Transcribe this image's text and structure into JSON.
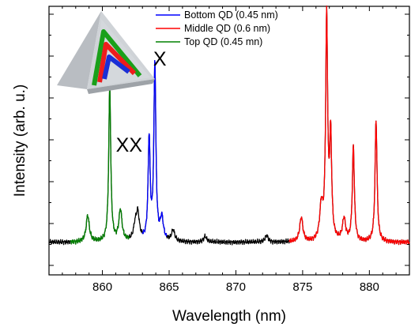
{
  "chart_data": {
    "type": "line",
    "xlabel": "Wavelength (nm)",
    "ylabel": "Intensity (arb. u.)",
    "xlim": [
      856,
      883
    ],
    "ylim": [
      0,
      1.0
    ],
    "x_ticks": [
      860,
      865,
      870,
      875,
      880
    ],
    "y_tick_labels": false,
    "series": [
      {
        "name": "Bottom QD (0.45 nm)",
        "color": "#0000ff",
        "range": [
          863.0,
          864.8
        ],
        "peaks": [
          [
            863.5,
            0.46
          ],
          [
            863.93,
            0.8
          ],
          [
            864.45,
            0.1
          ]
        ]
      },
      {
        "name": "Middle QD (0.6 nm)",
        "color": "#ff0000",
        "range": [
          874.0,
          883.0
        ],
        "peaks": [
          [
            874.9,
            0.11
          ],
          [
            876.4,
            0.15
          ],
          [
            876.8,
            1.0
          ],
          [
            877.1,
            0.46
          ],
          [
            878.1,
            0.1
          ],
          [
            878.8,
            0.43
          ],
          [
            880.5,
            0.55
          ]
        ]
      },
      {
        "name": "Top QD (0.45 mn)",
        "color": "#008000",
        "range": [
          857.6,
          862.0
        ],
        "peaks": [
          [
            858.9,
            0.12
          ],
          [
            860.55,
            0.7
          ],
          [
            861.35,
            0.14
          ]
        ]
      },
      {
        "name": "",
        "color": "#000000",
        "range": [
          856.0,
          883.0
        ],
        "peaks": [
          [
            862.65,
            0.12
          ],
          [
            862.45,
            0.06
          ],
          [
            865.3,
            0.05
          ],
          [
            867.7,
            0.025
          ],
          [
            872.3,
            0.03
          ]
        ]
      }
    ],
    "baseline": 0.04,
    "legend_position": "top-center",
    "annotations": [
      {
        "text": "X",
        "x": 864.3,
        "y": 0.84
      },
      {
        "text": "XX",
        "x": 862.0,
        "y": 0.45
      }
    ]
  }
}
